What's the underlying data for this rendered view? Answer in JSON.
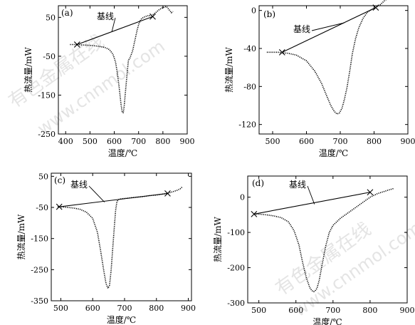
{
  "chart_data": [
    {
      "id": "a",
      "type": "line",
      "panel_label": "(a)",
      "xlabel": "温度/℃",
      "ylabel": "热流量/mW",
      "xlim": [
        370,
        900
      ],
      "ylim": [
        -250,
        80
      ],
      "xticks": [
        400,
        500,
        600,
        700,
        800,
        900
      ],
      "yticks": [
        50,
        -50,
        -150,
        -250
      ],
      "series": [
        {
          "x": [
            418,
            430,
            447,
            470,
            500,
            530,
            560,
            580,
            595,
            605,
            612,
            620,
            628,
            633,
            637,
            641,
            646,
            652,
            658,
            664,
            670,
            676,
            681,
            688,
            695,
            702,
            710,
            720,
            735,
            755,
            770,
            785,
            800,
            815,
            825,
            835,
            842
          ],
          "y": [
            -20,
            -20,
            -20,
            -21,
            -22,
            -24,
            -27,
            -33,
            -45,
            -65,
            -90,
            -130,
            -175,
            -195,
            -195,
            -178,
            -140,
            -100,
            -60,
            -55,
            -45,
            -35,
            -20,
            0,
            20,
            35,
            45,
            50,
            54,
            55,
            62,
            70,
            75,
            78,
            70,
            62,
            65
          ]
        }
      ],
      "annotation": {
        "text": "基线",
        "baseline_from": [
          447,
          -20
        ],
        "baseline_to": [
          758,
          52
        ],
        "leader_target": [
          590,
          13
        ]
      }
    },
    {
      "id": "b",
      "type": "line",
      "panel_label": "(b)",
      "xlabel": "温度/℃",
      "ylabel": "热流量/mW",
      "xlim": [
        460,
        900
      ],
      "ylim": [
        -130,
        5
      ],
      "xticks": [
        500,
        600,
        700,
        800,
        900
      ],
      "yticks": [
        0,
        -40,
        -80,
        -120
      ],
      "series": [
        {
          "x": [
            483,
            500,
            515,
            528,
            545,
            570,
            600,
            625,
            645,
            660,
            672,
            682,
            690,
            697,
            705,
            712,
            720,
            728,
            736,
            745,
            755,
            768,
            780,
            793,
            805,
            818,
            830,
            842,
            852,
            860,
            863
          ],
          "y": [
            -44,
            -44,
            -44,
            -44.5,
            -45,
            -47,
            -53,
            -64,
            -77,
            -90,
            -100,
            -106,
            -109,
            -108,
            -103,
            -94,
            -81,
            -64,
            -45,
            -30,
            -18,
            -8,
            -2,
            1,
            3,
            6,
            10,
            13,
            14,
            18,
            22
          ]
        }
      ],
      "annotation": {
        "text": "基线",
        "baseline_from": [
          528,
          -44
        ],
        "baseline_to": [
          805,
          3
        ],
        "leader_target": [
          712,
          -13
        ]
      }
    },
    {
      "id": "c",
      "type": "line",
      "panel_label": "(c)",
      "xlabel": "温度/℃",
      "ylabel": "热流量/mW",
      "xlim": [
        470,
        910
      ],
      "ylim": [
        -350,
        60
      ],
      "xticks": [
        500,
        600,
        700,
        800,
        900
      ],
      "yticks": [
        50,
        -50,
        -150,
        -250,
        -350
      ],
      "series": [
        {
          "x": [
            490,
            500,
            520,
            540,
            560,
            580,
            600,
            615,
            625,
            635,
            642,
            648,
            653,
            658,
            663,
            668,
            672,
            676,
            680,
            690,
            700,
            720,
            740,
            760,
            780,
            800,
            820,
            835,
            850,
            865,
            875,
            880
          ],
          "y": [
            -48,
            -48,
            -50,
            -52,
            -56,
            -65,
            -85,
            -130,
            -190,
            -255,
            -295,
            -310,
            -300,
            -250,
            -180,
            -110,
            -60,
            -32,
            -25,
            -22,
            -21,
            -19,
            -17,
            -15,
            -12,
            -10,
            -7,
            -5,
            0,
            5,
            10,
            15
          ]
        }
      ],
      "annotation": {
        "text": "基线",
        "baseline_from": [
          495,
          -48
        ],
        "baseline_to": [
          835,
          -5
        ],
        "leader_target": [
          637,
          -33
        ]
      }
    },
    {
      "id": "d",
      "type": "line",
      "panel_label": "(d)",
      "xlabel": "温度/℃",
      "ylabel": "热流量/mW",
      "xlim": [
        470,
        900
      ],
      "ylim": [
        -300,
        60
      ],
      "xticks": [
        500,
        600,
        700,
        800,
        900
      ],
      "yticks": [
        0,
        -100,
        -200,
        -300
      ],
      "series": [
        {
          "x": [
            487,
            500,
            520,
            540,
            560,
            580,
            595,
            608,
            618,
            628,
            637,
            643,
            648,
            652,
            657,
            663,
            670,
            680,
            690,
            700,
            720,
            740,
            760,
            780,
            800,
            820,
            840,
            855,
            865
          ],
          "y": [
            -48,
            -48,
            -50,
            -53,
            -58,
            -70,
            -95,
            -135,
            -185,
            -228,
            -256,
            -265,
            -268,
            -266,
            -258,
            -235,
            -195,
            -140,
            -100,
            -80,
            -60,
            -45,
            -30,
            -15,
            0,
            10,
            17,
            22,
            25
          ]
        }
      ],
      "annotation": {
        "text": "基线",
        "baseline_from": [
          487,
          -48
        ],
        "baseline_to": [
          800,
          14
        ],
        "leader_target": [
          650,
          -20
        ]
      }
    }
  ],
  "watermarks": [
    "有色金属在线",
    "www.cnnmol.com"
  ]
}
